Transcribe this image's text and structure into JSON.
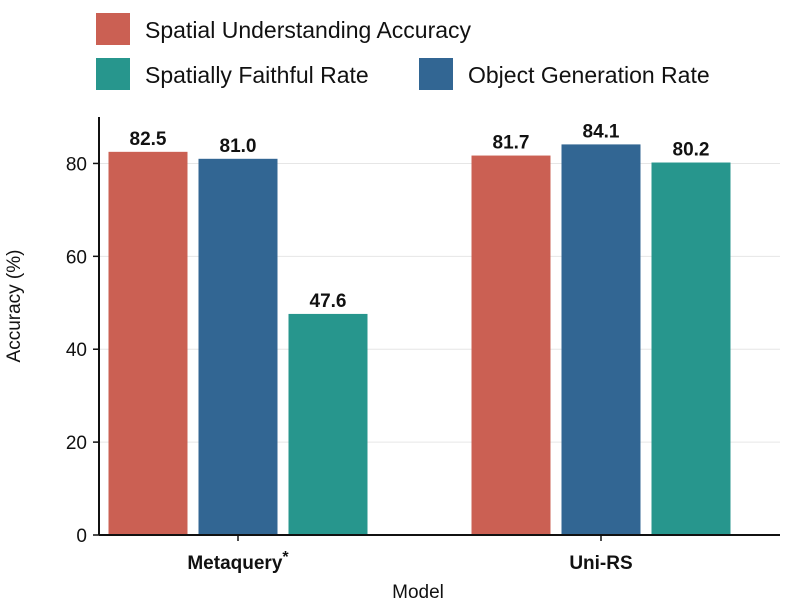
{
  "chart_data": {
    "type": "bar",
    "title": "",
    "xlabel": "Model",
    "ylabel": "Accuracy (%)",
    "ylim": [
      0,
      90
    ],
    "yticks": [
      0,
      20,
      40,
      60,
      80
    ],
    "grid": true,
    "legend_position": "top",
    "groups": [
      {
        "category": "Metaquery",
        "category_marker": "*",
        "bars": [
          {
            "series": "Spatial Understanding Accuracy",
            "value": 82.5,
            "label": "82.5"
          },
          {
            "series": "Object Generation Rate",
            "value": 81.0,
            "label": "81.0"
          },
          {
            "series": "Spatially Faithful Rate",
            "value": 47.6,
            "label": "47.6"
          }
        ]
      },
      {
        "category": "Uni-RS",
        "category_marker": "",
        "bars": [
          {
            "series": "Spatial Understanding Accuracy",
            "value": 81.7,
            "label": "81.7"
          },
          {
            "series": "Object Generation Rate",
            "value": 84.1,
            "label": "84.1"
          },
          {
            "series": "Spatially Faithful Rate",
            "value": 80.2,
            "label": "80.2"
          }
        ]
      }
    ],
    "legend": [
      {
        "name": "Spatial Understanding Accuracy",
        "color": "#cb6053"
      },
      {
        "name": "Spatially Faithful Rate",
        "color": "#27968d"
      },
      {
        "name": "Object Generation Rate",
        "color": "#326693"
      }
    ]
  }
}
